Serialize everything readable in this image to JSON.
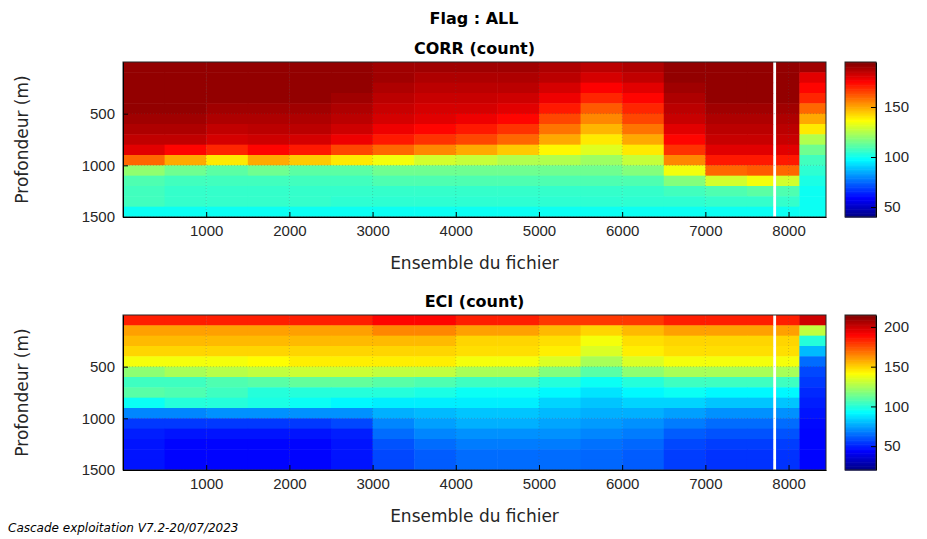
{
  "suptitle": "Flag : ALL",
  "footer": "Cascade exploitation V7.2-20/07/2023",
  "chart_data": [
    {
      "type": "heatmap",
      "title": "CORR (count)",
      "x_label": "Ensemble du fichier",
      "y_label": "Profondeur (m)",
      "xlim": [
        0,
        8450
      ],
      "ylim": [
        1500,
        0
      ],
      "xticks": [
        1000,
        2000,
        3000,
        4000,
        5000,
        6000,
        7000,
        8000
      ],
      "yticks": [
        500,
        1000,
        1500
      ],
      "grid": true,
      "x_edges": [
        0,
        500,
        1000,
        1500,
        2000,
        2500,
        3000,
        3500,
        4000,
        4500,
        5000,
        5500,
        6000,
        6500,
        7000,
        7500,
        7810,
        7850,
        8130,
        8450
      ],
      "y_edges": [
        0,
        100,
        200,
        300,
        400,
        500,
        600,
        700,
        800,
        900,
        1000,
        1100,
        1200,
        1300,
        1400,
        1500
      ],
      "cells": [
        [
          192,
          192,
          192,
          192,
          192,
          192,
          190,
          190,
          190,
          190,
          188,
          186,
          188,
          192,
          192,
          192,
          null,
          192,
          190
        ],
        [
          192,
          192,
          192,
          192,
          192,
          192,
          190,
          188,
          188,
          188,
          186,
          182,
          185,
          192,
          192,
          192,
          null,
          192,
          180
        ],
        [
          192,
          192,
          192,
          192,
          192,
          192,
          188,
          186,
          186,
          186,
          182,
          176,
          180,
          190,
          192,
          192,
          null,
          192,
          175
        ],
        [
          192,
          192,
          192,
          192,
          192,
          190,
          186,
          184,
          184,
          183,
          178,
          170,
          175,
          188,
          192,
          192,
          null,
          192,
          170
        ],
        [
          192,
          192,
          190,
          190,
          190,
          188,
          184,
          182,
          182,
          180,
          172,
          162,
          170,
          186,
          190,
          190,
          null,
          190,
          160
        ],
        [
          190,
          190,
          188,
          188,
          188,
          186,
          182,
          180,
          178,
          175,
          165,
          155,
          165,
          184,
          188,
          188,
          null,
          188,
          150
        ],
        [
          188,
          188,
          185,
          186,
          186,
          183,
          178,
          175,
          172,
          168,
          158,
          148,
          158,
          180,
          186,
          186,
          null,
          186,
          140
        ],
        [
          185,
          185,
          182,
          183,
          182,
          178,
          172,
          168,
          165,
          160,
          150,
          140,
          150,
          175,
          184,
          184,
          null,
          184,
          125
        ],
        [
          180,
          175,
          170,
          175,
          172,
          165,
          160,
          155,
          150,
          145,
          138,
          132,
          140,
          168,
          180,
          180,
          null,
          180,
          115
        ],
        [
          160,
          150,
          140,
          150,
          145,
          140,
          135,
          130,
          128,
          125,
          125,
          122,
          128,
          155,
          172,
          172,
          null,
          172,
          108
        ],
        [
          120,
          115,
          112,
          115,
          112,
          112,
          115,
          115,
          115,
          115,
          115,
          115,
          118,
          135,
          160,
          162,
          null,
          160,
          105
        ],
        [
          110,
          108,
          108,
          108,
          108,
          108,
          110,
          110,
          110,
          110,
          110,
          110,
          110,
          118,
          130,
          135,
          null,
          130,
          102
        ],
        [
          108,
          106,
          106,
          106,
          106,
          106,
          106,
          106,
          106,
          106,
          106,
          106,
          106,
          108,
          110,
          112,
          null,
          110,
          100
        ],
        [
          108,
          106,
          106,
          106,
          106,
          105,
          105,
          105,
          105,
          105,
          105,
          105,
          105,
          105,
          106,
          106,
          null,
          106,
          100
        ],
        [
          100,
          100,
          100,
          100,
          100,
          100,
          100,
          100,
          100,
          100,
          100,
          100,
          100,
          100,
          100,
          100,
          null,
          100,
          100
        ]
      ],
      "colorbar": {
        "range": [
          40,
          195
        ],
        "ticks": [
          50,
          100,
          150
        ]
      }
    },
    {
      "type": "heatmap",
      "title": "ECI (count)",
      "x_label": "Ensemble du fichier",
      "y_label": "Profondeur (m)",
      "xlim": [
        0,
        8450
      ],
      "ylim": [
        1500,
        0
      ],
      "xticks": [
        1000,
        2000,
        3000,
        4000,
        5000,
        6000,
        7000,
        8000
      ],
      "yticks": [
        500,
        1000,
        1500
      ],
      "grid": true,
      "x_edges": [
        0,
        500,
        1000,
        1500,
        2000,
        2500,
        3000,
        3500,
        4000,
        4500,
        5000,
        5500,
        6000,
        6500,
        7000,
        7500,
        7810,
        7850,
        8130,
        8450
      ],
      "y_edges": [
        0,
        100,
        200,
        300,
        400,
        500,
        600,
        700,
        800,
        900,
        1000,
        1100,
        1200,
        1300,
        1400,
        1500
      ],
      "cells": [
        [
          185,
          185,
          185,
          185,
          185,
          185,
          190,
          190,
          185,
          185,
          180,
          180,
          180,
          185,
          185,
          185,
          null,
          185,
          200
        ],
        [
          160,
          160,
          160,
          160,
          160,
          160,
          165,
          165,
          160,
          160,
          155,
          150,
          155,
          160,
          160,
          160,
          null,
          160,
          130
        ],
        [
          155,
          155,
          155,
          155,
          155,
          155,
          155,
          155,
          150,
          150,
          148,
          140,
          148,
          150,
          150,
          150,
          null,
          150,
          100
        ],
        [
          150,
          150,
          150,
          150,
          150,
          150,
          150,
          150,
          148,
          148,
          145,
          135,
          145,
          148,
          148,
          148,
          null,
          148,
          80
        ],
        [
          140,
          140,
          140,
          142,
          145,
          145,
          145,
          145,
          140,
          140,
          135,
          125,
          135,
          140,
          140,
          140,
          null,
          140,
          65
        ],
        [
          120,
          125,
          128,
          130,
          132,
          132,
          130,
          130,
          125,
          125,
          118,
          110,
          120,
          125,
          125,
          125,
          null,
          125,
          58
        ],
        [
          105,
          105,
          108,
          110,
          112,
          112,
          110,
          108,
          105,
          105,
          100,
          95,
          100,
          105,
          105,
          105,
          null,
          105,
          55
        ],
        [
          110,
          108,
          105,
          100,
          100,
          100,
          100,
          98,
          95,
          95,
          92,
          88,
          92,
          95,
          92,
          92,
          null,
          92,
          52
        ],
        [
          95,
          100,
          100,
          98,
          95,
          92,
          90,
          90,
          90,
          90,
          85,
          82,
          85,
          85,
          82,
          82,
          null,
          82,
          50
        ],
        [
          70,
          70,
          72,
          72,
          72,
          72,
          78,
          80,
          82,
          82,
          80,
          78,
          78,
          75,
          72,
          72,
          null,
          72,
          48
        ],
        [
          55,
          55,
          55,
          55,
          55,
          58,
          70,
          75,
          78,
          78,
          76,
          74,
          72,
          68,
          65,
          65,
          null,
          65,
          46
        ],
        [
          50,
          48,
          48,
          48,
          48,
          50,
          65,
          70,
          72,
          72,
          72,
          70,
          68,
          62,
          60,
          60,
          null,
          60,
          45
        ],
        [
          48,
          45,
          45,
          45,
          45,
          48,
          60,
          65,
          68,
          68,
          68,
          66,
          64,
          58,
          56,
          56,
          null,
          56,
          45
        ],
        [
          48,
          45,
          45,
          45,
          45,
          48,
          58,
          62,
          65,
          65,
          65,
          64,
          62,
          56,
          54,
          54,
          null,
          54,
          45
        ],
        [
          48,
          45,
          45,
          45,
          45,
          48,
          58,
          62,
          65,
          65,
          65,
          64,
          62,
          56,
          54,
          54,
          null,
          54,
          45
        ]
      ],
      "colorbar": {
        "range": [
          20,
          215
        ],
        "ticks": [
          50,
          100,
          150,
          200
        ]
      }
    }
  ]
}
